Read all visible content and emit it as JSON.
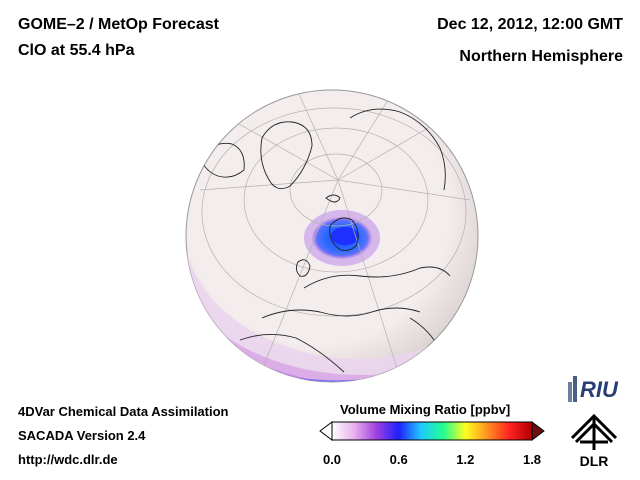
{
  "header": {
    "title": "GOME–2 / MetOp Forecast",
    "species": "ClO at 55.4 hPa",
    "datetime": "Dec 12, 2012, 12:00 GMT",
    "region": "Northern Hemisphere"
  },
  "footer": {
    "method": "4DVar Chemical Data Assimilation",
    "version": "SACADA Version 2.4",
    "url": "http://wdc.dlr.de"
  },
  "colorbar": {
    "title": "Volume Mixing Ratio [ppbv]",
    "ticks": [
      "0.0",
      "0.6",
      "1.2",
      "1.8"
    ],
    "min": 0.0,
    "max": 1.8,
    "colors": [
      "#ffffff",
      "#e8b0ec",
      "#a040e0",
      "#2020ff",
      "#20c8ff",
      "#20ff90",
      "#ffff20",
      "#ff9020",
      "#ff2020",
      "#b00000"
    ]
  },
  "logos": {
    "riu": "RIU",
    "dlr": "DLR"
  },
  "map": {
    "projection": "orthographic",
    "hemisphere": "north",
    "background_color": "#f3ecec",
    "features": [
      {
        "name": "clo-maximum-scandinavia",
        "value_ppbv": 0.7
      },
      {
        "name": "clo-band-southern-edge",
        "value_ppbv": 0.3
      }
    ]
  }
}
